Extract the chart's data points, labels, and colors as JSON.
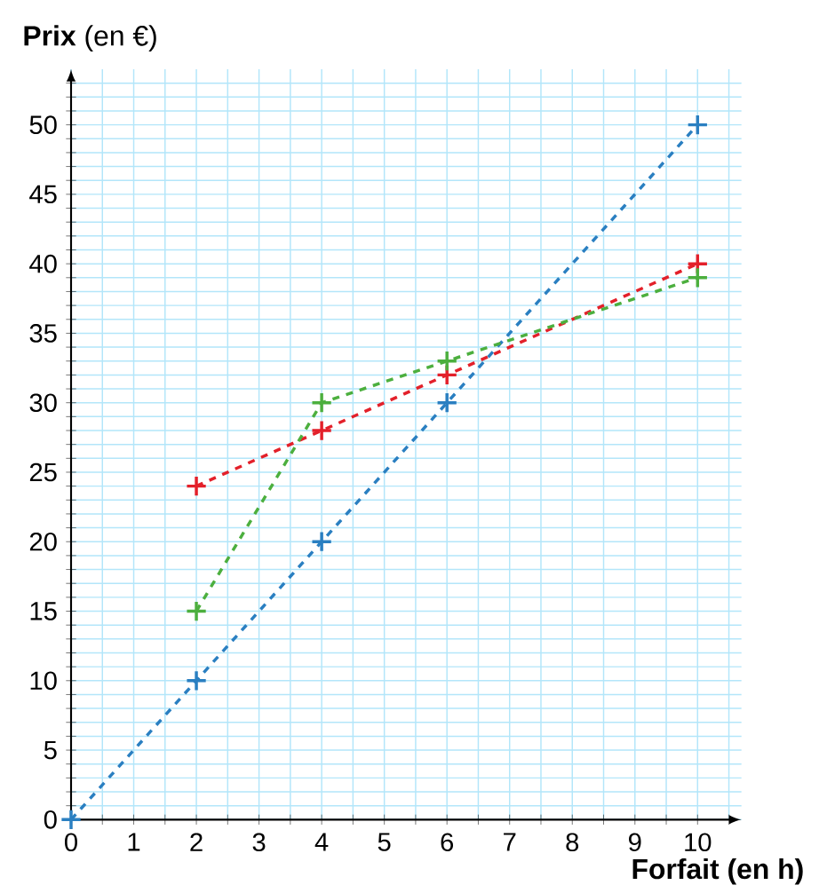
{
  "chart_data": {
    "type": "line",
    "xlabel": "**Forfait (en h)**",
    "ylabel": "**Prix** (en €)",
    "xlim": [
      0,
      10.7
    ],
    "ylim": [
      0,
      54
    ],
    "xticks": [
      0,
      {
        "value": 0.5,
        "label": null
      },
      1,
      {
        "value": 1.5,
        "label": null
      },
      2,
      {
        "value": 2.5,
        "label": null
      },
      3,
      {
        "value": 3.5,
        "label": null
      },
      4,
      {
        "value": 4.5,
        "label": null
      },
      5,
      {
        "value": 5.5,
        "label": null
      },
      6,
      {
        "value": 6.5,
        "label": null
      },
      7,
      {
        "value": 7.5,
        "label": null
      },
      8,
      {
        "value": 8.5,
        "label": null
      },
      9,
      {
        "value": 9.5,
        "label": null
      },
      10,
      {
        "value": 10.5,
        "label": null
      }
    ],
    "yticks": [
      0,
      {
        "value": 1,
        "label": null
      },
      {
        "value": 2,
        "label": null
      },
      {
        "value": 3,
        "label": null
      },
      {
        "value": 4,
        "label": null
      },
      5,
      {
        "value": 6,
        "label": null
      },
      {
        "value": 7,
        "label": null
      },
      {
        "value": 8,
        "label": null
      },
      {
        "value": 9,
        "label": null
      },
      10,
      {
        "value": 11,
        "label": null
      },
      {
        "value": 12,
        "label": null
      },
      {
        "value": 13,
        "label": null
      },
      {
        "value": 14,
        "label": null
      },
      15,
      {
        "value": 16,
        "label": null
      },
      {
        "value": 17,
        "label": null
      },
      {
        "value": 18,
        "label": null
      },
      {
        "value": 19,
        "label": null
      },
      20,
      {
        "value": 21,
        "label": null
      },
      {
        "value": 22,
        "label": null
      },
      {
        "value": 23,
        "label": null
      },
      {
        "value": 24,
        "label": null
      },
      25,
      {
        "value": 26,
        "label": null
      },
      {
        "value": 27,
        "label": null
      },
      {
        "value": 28,
        "label": null
      },
      {
        "value": 29,
        "label": null
      },
      30,
      {
        "value": 31,
        "label": null
      },
      {
        "value": 32,
        "label": null
      },
      {
        "value": 33,
        "label": null
      },
      {
        "value": 34,
        "label": null
      },
      35,
      {
        "value": 36,
        "label": null
      },
      {
        "value": 37,
        "label": null
      },
      {
        "value": 38,
        "label": null
      },
      {
        "value": 39,
        "label": null
      },
      40,
      {
        "value": 41,
        "label": null
      },
      {
        "value": 42,
        "label": null
      },
      {
        "value": 43,
        "label": null
      },
      {
        "value": 44,
        "label": null
      },
      45,
      {
        "value": 46,
        "label": null
      },
      {
        "value": 47,
        "label": null
      },
      {
        "value": 48,
        "label": null
      },
      {
        "value": 49,
        "label": null
      },
      50,
      {
        "value": 51,
        "label": null
      },
      {
        "value": 52,
        "label": null
      },
      {
        "value": 53,
        "label": null
      }
    ],
    "grid": true,
    "marker": "cross",
    "line_style": "dashed",
    "series": [
      {
        "color": "#2a7fc1",
        "x": [
          0,
          2,
          4,
          6,
          10
        ],
        "values": [
          0,
          10,
          20,
          30,
          50
        ]
      },
      {
        "color": "#e3202a",
        "x": [
          2,
          4,
          6,
          10
        ],
        "values": [
          24,
          28,
          32,
          40
        ]
      },
      {
        "color": "#4caf3e",
        "x": [
          2,
          4,
          6,
          10
        ],
        "values": [
          15,
          30,
          33,
          39
        ]
      }
    ]
  }
}
